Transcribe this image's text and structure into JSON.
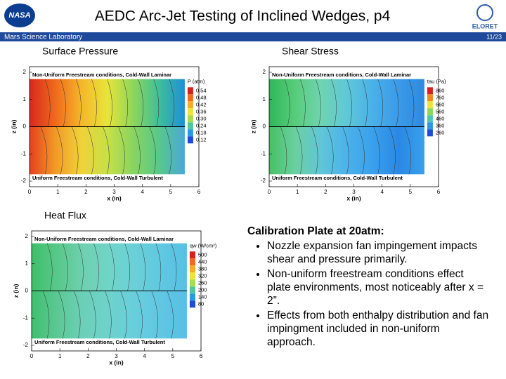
{
  "header": {
    "title": "AEDC Arc-Jet Testing of Inclined Wedges, p4",
    "logo_left": "NASA",
    "logo_right": "ELORET",
    "subtitle": "Mars Science Laboratory",
    "page": "11/23"
  },
  "plots": [
    {
      "label": "Surface Pressure",
      "top_text": "Non-Uniform Freestream conditions, Cold-Wall Laminar",
      "bottom_text": "Uniform Freestream conditions, Cold-Wall Turbulent",
      "xlabel": "x (in)",
      "ylabel": "z (in)",
      "xticks": [
        "0",
        "1",
        "2",
        "3",
        "4",
        "5",
        "6"
      ],
      "yticks": [
        "2",
        "1",
        "0",
        "-1",
        "-2"
      ],
      "legend_title": "P (atm)",
      "levels": [
        "0.54",
        "0.48",
        "0.42",
        "0.36",
        "0.30",
        "0.24",
        "0.18",
        "0.12"
      ]
    },
    {
      "label": "Shear Stress",
      "top_text": "Non-Uniform Freestream conditions, Cold-Wall Laminar",
      "bottom_text": "Uniform Freestream conditions, Cold-Wall Turbulent",
      "xlabel": "x (in)",
      "ylabel": "z (in)",
      "xticks": [
        "0",
        "1",
        "2",
        "3",
        "4",
        "5",
        "6"
      ],
      "yticks": [
        "2",
        "1",
        "0",
        "-1",
        "-2"
      ],
      "legend_title": "tau (Pa)",
      "levels": [
        "860",
        "760",
        "660",
        "560",
        "460",
        "360",
        "260"
      ]
    },
    {
      "label": "Heat Flux",
      "top_text": "Non-Uniform Freestream conditions, Cold-Wall Laminar",
      "bottom_text": "Uniform Freestream conditions, Cold-Wall Turbulent",
      "xlabel": "x (in)",
      "ylabel": "z (in)",
      "xticks": [
        "0",
        "1",
        "2",
        "3",
        "4",
        "5",
        "6"
      ],
      "yticks": [
        "2",
        "1",
        "0",
        "-1",
        "-2"
      ],
      "legend_title": "qw (W/cm²)",
      "levels": [
        "500",
        "440",
        "380",
        "320",
        "260",
        "200",
        "140",
        "80"
      ]
    }
  ],
  "notes": {
    "heading": "Calibration Plate at 20atm:",
    "bullets": [
      "Nozzle expansion fan impingement impacts shear and pressure primarily.",
      "Non-uniform freestream conditions effect plate environments, most noticeably after x = 2”.",
      "Effects from both enthalpy distribution and fan impingment included in non-uniform approach."
    ]
  }
}
